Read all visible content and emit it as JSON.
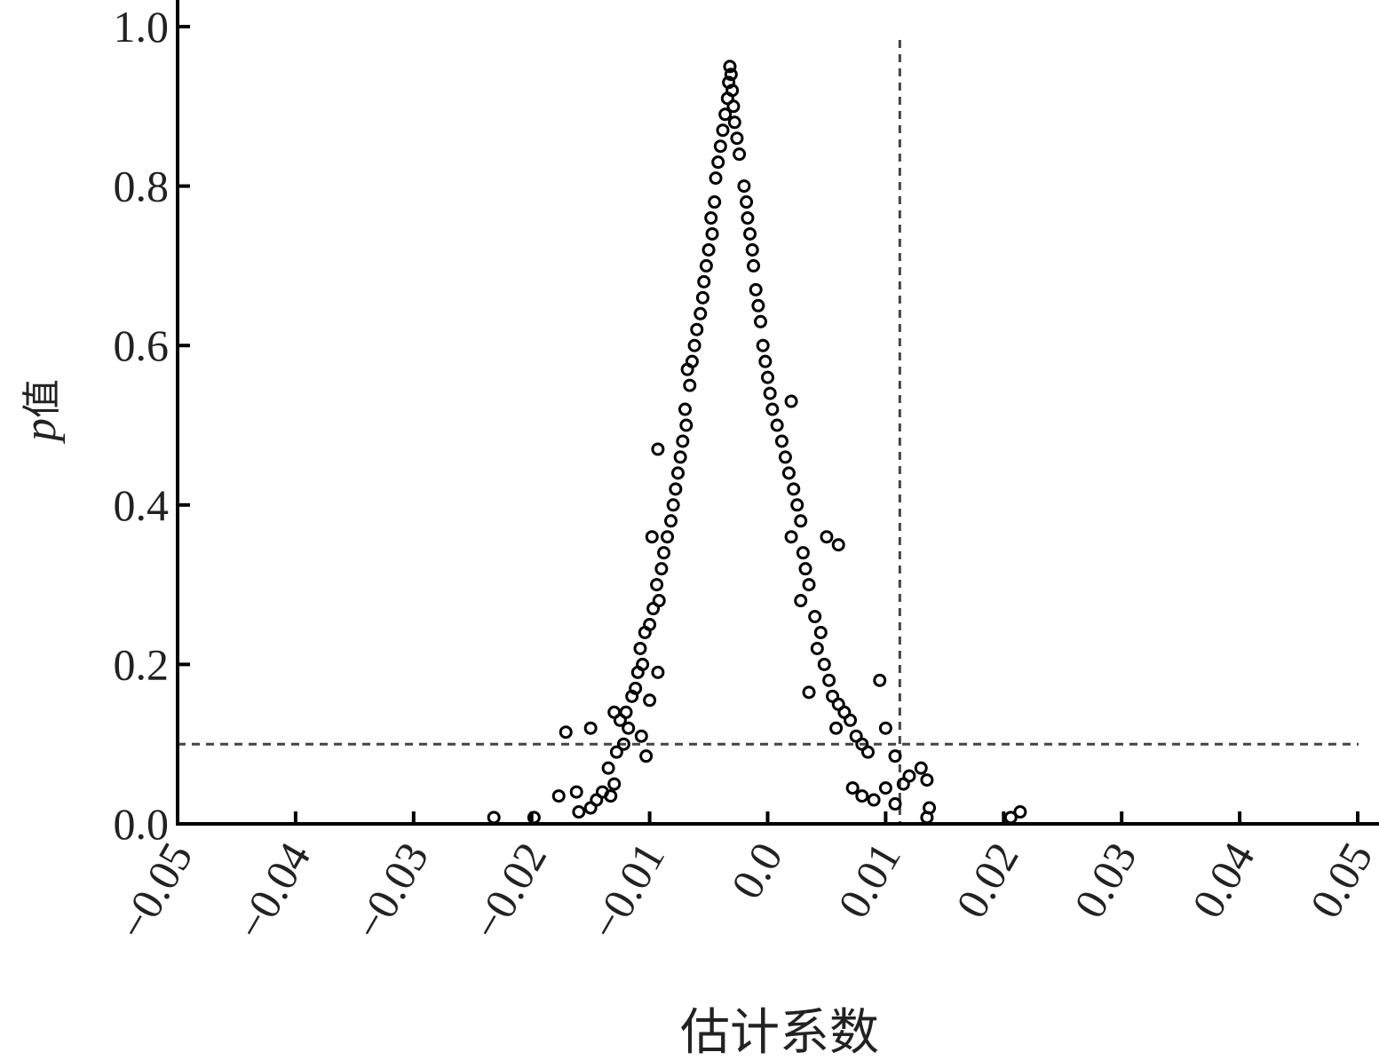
{
  "chart_data": {
    "type": "scatter",
    "xlabel": "估计系数",
    "ylabel_italic": "p",
    "ylabel_rest": "值",
    "xlim": [
      -0.05,
      0.05
    ],
    "ylim": [
      0.0,
      1.0
    ],
    "xticks": [
      "−0.05",
      "−0.04",
      "−0.03",
      "−0.02",
      "−0.01",
      "0.0",
      "0.01",
      "0.02",
      "0.03",
      "0.04",
      "0.05"
    ],
    "xtick_values": [
      -0.05,
      -0.04,
      -0.03,
      -0.02,
      -0.01,
      0.0,
      0.01,
      0.02,
      0.03,
      0.04,
      0.05
    ],
    "yticks": [
      "0.0",
      "0.2",
      "0.4",
      "0.6",
      "0.8",
      "1.0"
    ],
    "ytick_values": [
      0.0,
      0.2,
      0.4,
      0.6,
      0.8,
      1.0
    ],
    "grid": false,
    "marker": "open-circle",
    "marker_color": "#000000",
    "reference_lines": {
      "horizontal_p": 0.1,
      "vertical_x": 0.0112,
      "style": "dashed",
      "color": "#444444"
    },
    "points": [
      [
        -0.0032,
        0.95
      ],
      [
        -0.0033,
        0.93
      ],
      [
        -0.0031,
        0.94
      ],
      [
        -0.0034,
        0.91
      ],
      [
        -0.003,
        0.92
      ],
      [
        -0.0036,
        0.89
      ],
      [
        -0.0029,
        0.9
      ],
      [
        -0.0038,
        0.87
      ],
      [
        -0.004,
        0.85
      ],
      [
        -0.0042,
        0.83
      ],
      [
        -0.0044,
        0.81
      ],
      [
        -0.0045,
        0.78
      ],
      [
        -0.0048,
        0.76
      ],
      [
        -0.0047,
        0.74
      ],
      [
        -0.005,
        0.72
      ],
      [
        -0.0052,
        0.7
      ],
      [
        -0.0054,
        0.68
      ],
      [
        -0.0055,
        0.66
      ],
      [
        -0.0057,
        0.64
      ],
      [
        -0.006,
        0.62
      ],
      [
        -0.0062,
        0.6
      ],
      [
        -0.0064,
        0.58
      ],
      [
        -0.0068,
        0.57
      ],
      [
        -0.0066,
        0.55
      ],
      [
        -0.007,
        0.52
      ],
      [
        -0.0069,
        0.5
      ],
      [
        -0.0072,
        0.48
      ],
      [
        -0.0074,
        0.46
      ],
      [
        -0.0093,
        0.47
      ],
      [
        -0.0076,
        0.44
      ],
      [
        -0.0078,
        0.42
      ],
      [
        -0.008,
        0.4
      ],
      [
        -0.0082,
        0.38
      ],
      [
        -0.0085,
        0.36
      ],
      [
        -0.0098,
        0.36
      ],
      [
        -0.0088,
        0.34
      ],
      [
        -0.009,
        0.32
      ],
      [
        -0.0094,
        0.3
      ],
      [
        -0.0092,
        0.28
      ],
      [
        -0.0097,
        0.27
      ],
      [
        -0.01,
        0.25
      ],
      [
        -0.0104,
        0.24
      ],
      [
        -0.0108,
        0.22
      ],
      [
        -0.0106,
        0.2
      ],
      [
        -0.011,
        0.19
      ],
      [
        -0.0093,
        0.19
      ],
      [
        -0.0112,
        0.17
      ],
      [
        -0.0115,
        0.16
      ],
      [
        -0.01,
        0.155
      ],
      [
        -0.012,
        0.14
      ],
      [
        -0.0125,
        0.13
      ],
      [
        -0.013,
        0.14
      ],
      [
        -0.0118,
        0.12
      ],
      [
        -0.0107,
        0.11
      ],
      [
        -0.0122,
        0.1
      ],
      [
        -0.0128,
        0.09
      ],
      [
        -0.0103,
        0.085
      ],
      [
        -0.0135,
        0.07
      ],
      [
        -0.013,
        0.05
      ],
      [
        -0.014,
        0.04
      ],
      [
        -0.0145,
        0.03
      ],
      [
        -0.0133,
        0.035
      ],
      [
        -0.015,
        0.02
      ],
      [
        -0.016,
        0.015
      ],
      [
        -0.0162,
        0.04
      ],
      [
        -0.0177,
        0.035
      ],
      [
        -0.0171,
        0.115
      ],
      [
        -0.015,
        0.12
      ],
      [
        -0.0198,
        0.008
      ],
      [
        -0.0232,
        0.008
      ],
      [
        -0.0028,
        0.88
      ],
      [
        -0.0026,
        0.86
      ],
      [
        -0.0024,
        0.84
      ],
      [
        -0.002,
        0.8
      ],
      [
        -0.0018,
        0.78
      ],
      [
        -0.0017,
        0.76
      ],
      [
        -0.0015,
        0.74
      ],
      [
        -0.0013,
        0.72
      ],
      [
        -0.0012,
        0.7
      ],
      [
        -0.001,
        0.67
      ],
      [
        -0.0008,
        0.65
      ],
      [
        -0.0006,
        0.63
      ],
      [
        -0.0004,
        0.6
      ],
      [
        -0.0002,
        0.58
      ],
      [
        0.0,
        0.56
      ],
      [
        0.0002,
        0.54
      ],
      [
        0.0004,
        0.52
      ],
      [
        0.0008,
        0.5
      ],
      [
        0.0012,
        0.48
      ],
      [
        0.002,
        0.53
      ],
      [
        0.0015,
        0.46
      ],
      [
        0.0018,
        0.44
      ],
      [
        0.0022,
        0.42
      ],
      [
        0.0025,
        0.4
      ],
      [
        0.0028,
        0.38
      ],
      [
        0.002,
        0.36
      ],
      [
        0.003,
        0.34
      ],
      [
        0.0032,
        0.32
      ],
      [
        0.0035,
        0.3
      ],
      [
        0.0028,
        0.28
      ],
      [
        0.004,
        0.26
      ],
      [
        0.0045,
        0.24
      ],
      [
        0.005,
        0.36
      ],
      [
        0.006,
        0.35
      ],
      [
        0.0042,
        0.22
      ],
      [
        0.0048,
        0.2
      ],
      [
        0.0052,
        0.18
      ],
      [
        0.0055,
        0.16
      ],
      [
        0.0035,
        0.165
      ],
      [
        0.006,
        0.15
      ],
      [
        0.0065,
        0.14
      ],
      [
        0.007,
        0.13
      ],
      [
        0.0058,
        0.12
      ],
      [
        0.0075,
        0.11
      ],
      [
        0.008,
        0.1
      ],
      [
        0.0085,
        0.09
      ],
      [
        0.0095,
        0.18
      ],
      [
        0.01,
        0.12
      ],
      [
        0.0108,
        0.085
      ],
      [
        0.0072,
        0.045
      ],
      [
        0.008,
        0.035
      ],
      [
        0.009,
        0.03
      ],
      [
        0.01,
        0.045
      ],
      [
        0.0108,
        0.025
      ],
      [
        0.0115,
        0.05
      ],
      [
        0.012,
        0.06
      ],
      [
        0.013,
        0.07
      ],
      [
        0.0135,
        0.055
      ],
      [
        0.0137,
        0.02
      ],
      [
        0.0135,
        0.008
      ],
      [
        0.0206,
        0.008
      ],
      [
        0.0214,
        0.015
      ]
    ]
  }
}
